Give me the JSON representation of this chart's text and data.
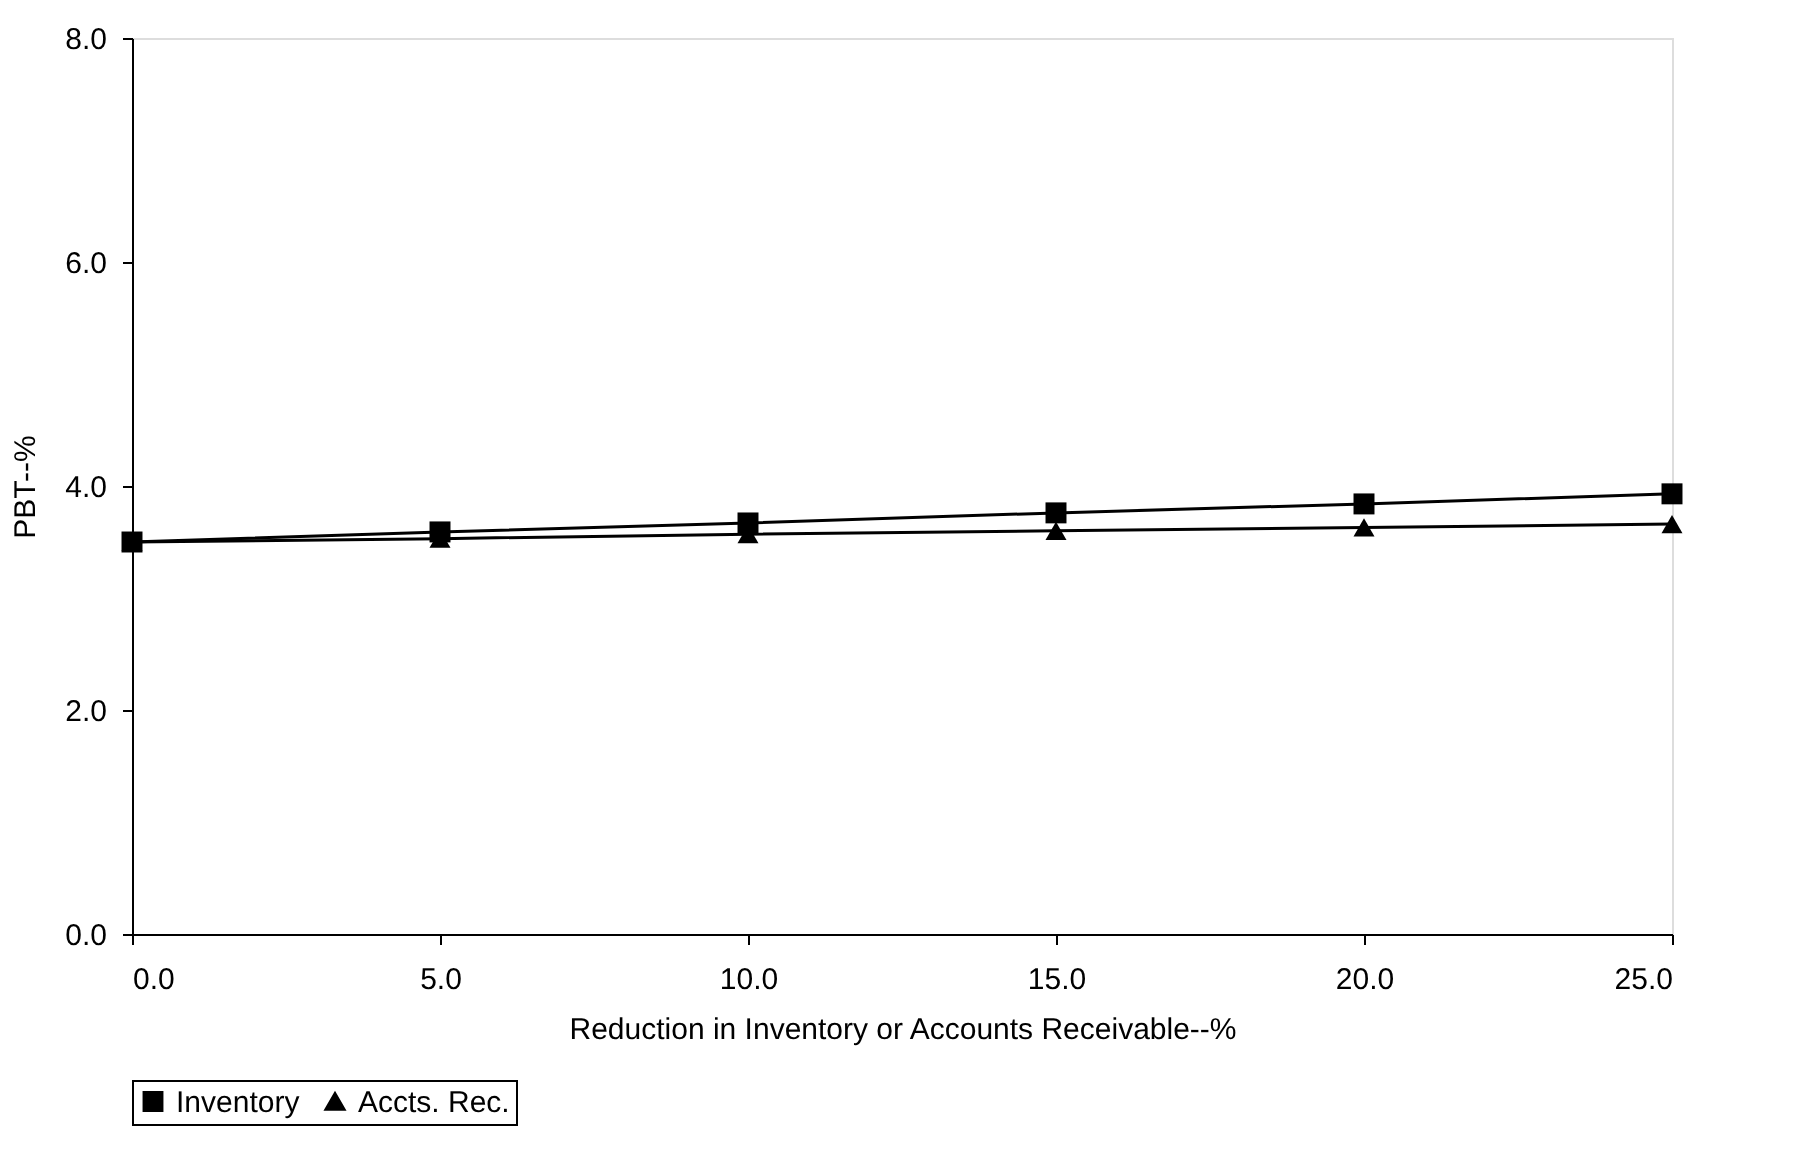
{
  "chart_data": {
    "type": "line",
    "xlabel": "Reduction in Inventory or Accounts Receivable--%",
    "ylabel": "PBT--%",
    "x": [
      0,
      5,
      10,
      15,
      20,
      25
    ],
    "series": [
      {
        "name": "Inventory",
        "color": "#000000",
        "marker": "square",
        "values": [
          3.5,
          3.59,
          3.67,
          3.76,
          3.84,
          3.93
        ]
      },
      {
        "name": "Accts. Rec.",
        "color": "#000000",
        "marker": "triangle",
        "values": [
          3.5,
          3.53,
          3.57,
          3.6,
          3.63,
          3.66
        ]
      }
    ],
    "xlim": [
      0,
      25
    ],
    "ylim": [
      0,
      8
    ],
    "xticks": [
      {
        "value": 0,
        "label": "0.0"
      },
      {
        "value": 5,
        "label": "5.0"
      },
      {
        "value": 10,
        "label": "10.0"
      },
      {
        "value": 15,
        "label": "15.0"
      },
      {
        "value": 20,
        "label": "20.0"
      },
      {
        "value": 25,
        "label": "25.0"
      }
    ],
    "yticks": [
      {
        "value": 0,
        "label": "0.0"
      },
      {
        "value": 2,
        "label": "2.0"
      },
      {
        "value": 4,
        "label": "4.0"
      },
      {
        "value": 6,
        "label": "6.0"
      },
      {
        "value": 8,
        "label": "8.0"
      }
    ],
    "grid": false,
    "legend": "bottom",
    "line_style": "solid"
  }
}
